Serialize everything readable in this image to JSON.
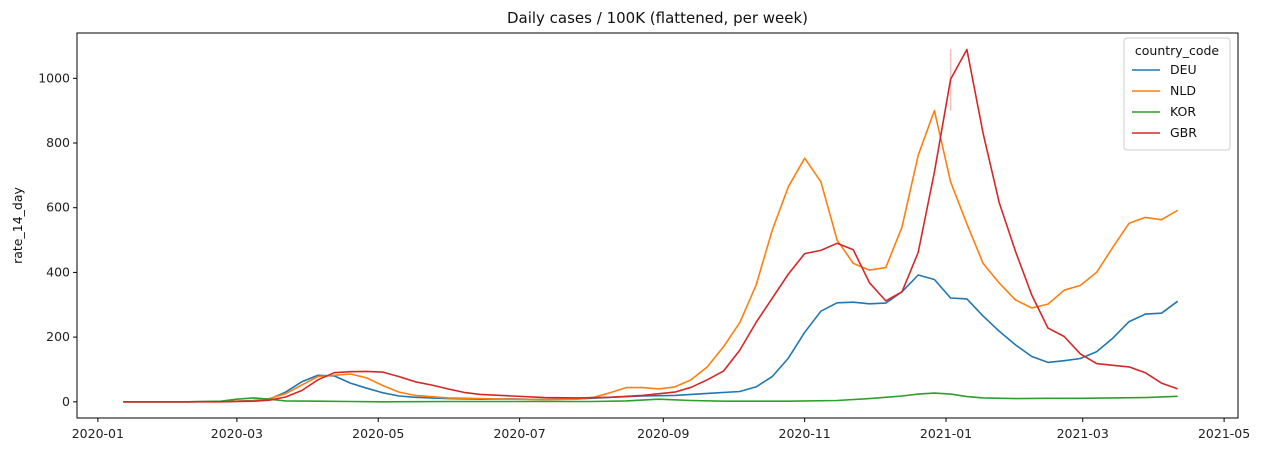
{
  "chart_data": {
    "type": "line",
    "title": "Daily cases / 100K (flattened, per week)",
    "xlabel": "",
    "ylabel": "rate_14_day",
    "xlim": [
      "2019-12-23",
      "2021-05-07"
    ],
    "ylim": [
      -50,
      1140
    ],
    "yticks": [
      0,
      200,
      400,
      600,
      800,
      1000
    ],
    "xticks": [
      {
        "date": "2020-01-01",
        "label": "2020-01"
      },
      {
        "date": "2020-03-01",
        "label": "2020-03"
      },
      {
        "date": "2020-05-01",
        "label": "2020-05"
      },
      {
        "date": "2020-07-01",
        "label": "2020-07"
      },
      {
        "date": "2020-09-01",
        "label": "2020-09"
      },
      {
        "date": "2020-11-01",
        "label": "2020-11"
      },
      {
        "date": "2021-01-01",
        "label": "2021-01"
      },
      {
        "date": "2021-03-01",
        "label": "2021-03"
      },
      {
        "date": "2021-05-01",
        "label": "2021-05"
      }
    ],
    "legend": {
      "title": "country_code",
      "placement": "top-right"
    },
    "grid": false,
    "series": [
      {
        "name": "DEU",
        "color": "#1f77b4",
        "points": [
          [
            "2020-01-12",
            0
          ],
          [
            "2020-01-26",
            0
          ],
          [
            "2020-02-09",
            0
          ],
          [
            "2020-02-23",
            1
          ],
          [
            "2020-03-01",
            2
          ],
          [
            "2020-03-08",
            4
          ],
          [
            "2020-03-15",
            8
          ],
          [
            "2020-03-22",
            30
          ],
          [
            "2020-03-29",
            62
          ],
          [
            "2020-04-05",
            82
          ],
          [
            "2020-04-12",
            80
          ],
          [
            "2020-04-19",
            58
          ],
          [
            "2020-04-26",
            42
          ],
          [
            "2020-05-03",
            28
          ],
          [
            "2020-05-10",
            18
          ],
          [
            "2020-05-17",
            14
          ],
          [
            "2020-05-31",
            10
          ],
          [
            "2020-06-14",
            8
          ],
          [
            "2020-06-28",
            9
          ],
          [
            "2020-07-12",
            7
          ],
          [
            "2020-07-26",
            9
          ],
          [
            "2020-08-09",
            14
          ],
          [
            "2020-08-23",
            18
          ],
          [
            "2020-09-06",
            20
          ],
          [
            "2020-09-20",
            26
          ],
          [
            "2020-10-04",
            32
          ],
          [
            "2020-10-11",
            46
          ],
          [
            "2020-10-18",
            78
          ],
          [
            "2020-10-25",
            135
          ],
          [
            "2020-11-01",
            215
          ],
          [
            "2020-11-08",
            280
          ],
          [
            "2020-11-15",
            306
          ],
          [
            "2020-11-22",
            308
          ],
          [
            "2020-11-29",
            303
          ],
          [
            "2020-12-06",
            305
          ],
          [
            "2020-12-13",
            340
          ],
          [
            "2020-12-20",
            392
          ],
          [
            "2020-12-27",
            378
          ],
          [
            "2021-01-03",
            321
          ],
          [
            "2021-01-10",
            318
          ],
          [
            "2021-01-17",
            265
          ],
          [
            "2021-01-24",
            218
          ],
          [
            "2021-01-31",
            176
          ],
          [
            "2021-02-07",
            140
          ],
          [
            "2021-02-14",
            122
          ],
          [
            "2021-02-21",
            127
          ],
          [
            "2021-02-28",
            134
          ],
          [
            "2021-03-07",
            155
          ],
          [
            "2021-03-14",
            197
          ],
          [
            "2021-03-21",
            248
          ],
          [
            "2021-03-28",
            271
          ],
          [
            "2021-04-04",
            274
          ],
          [
            "2021-04-11",
            311
          ]
        ]
      },
      {
        "name": "NLD",
        "color": "#ff7f0e",
        "points": [
          [
            "2020-01-12",
            0
          ],
          [
            "2020-01-26",
            0
          ],
          [
            "2020-02-09",
            0
          ],
          [
            "2020-02-23",
            1
          ],
          [
            "2020-03-01",
            2
          ],
          [
            "2020-03-08",
            3
          ],
          [
            "2020-03-15",
            10
          ],
          [
            "2020-03-22",
            25
          ],
          [
            "2020-03-29",
            52
          ],
          [
            "2020-04-05",
            78
          ],
          [
            "2020-04-12",
            82
          ],
          [
            "2020-04-19",
            86
          ],
          [
            "2020-04-26",
            74
          ],
          [
            "2020-05-03",
            50
          ],
          [
            "2020-05-10",
            30
          ],
          [
            "2020-05-17",
            20
          ],
          [
            "2020-05-31",
            12
          ],
          [
            "2020-06-14",
            10
          ],
          [
            "2020-06-28",
            8
          ],
          [
            "2020-07-12",
            7
          ],
          [
            "2020-07-26",
            8
          ],
          [
            "2020-08-02",
            14
          ],
          [
            "2020-08-09",
            28
          ],
          [
            "2020-08-16",
            44
          ],
          [
            "2020-08-23",
            44
          ],
          [
            "2020-08-30",
            40
          ],
          [
            "2020-09-06",
            46
          ],
          [
            "2020-09-13",
            68
          ],
          [
            "2020-09-20",
            108
          ],
          [
            "2020-09-27",
            170
          ],
          [
            "2020-10-04",
            245
          ],
          [
            "2020-10-11",
            360
          ],
          [
            "2020-10-18",
            530
          ],
          [
            "2020-10-25",
            665
          ],
          [
            "2020-11-01",
            753
          ],
          [
            "2020-11-08",
            680
          ],
          [
            "2020-11-15",
            500
          ],
          [
            "2020-11-22",
            428
          ],
          [
            "2020-11-29",
            407
          ],
          [
            "2020-12-06",
            415
          ],
          [
            "2020-12-13",
            540
          ],
          [
            "2020-12-20",
            762
          ],
          [
            "2020-12-27",
            900
          ],
          [
            "2021-01-03",
            680
          ],
          [
            "2021-01-10",
            550
          ],
          [
            "2021-01-17",
            428
          ],
          [
            "2021-01-24",
            367
          ],
          [
            "2021-01-31",
            315
          ],
          [
            "2021-02-07",
            290
          ],
          [
            "2021-02-14",
            302
          ],
          [
            "2021-02-21",
            345
          ],
          [
            "2021-02-28",
            360
          ],
          [
            "2021-03-07",
            400
          ],
          [
            "2021-03-14",
            478
          ],
          [
            "2021-03-21",
            552
          ],
          [
            "2021-03-28",
            570
          ],
          [
            "2021-04-04",
            563
          ],
          [
            "2021-04-11",
            592
          ]
        ]
      },
      {
        "name": "KOR",
        "color": "#2ca02c",
        "points": [
          [
            "2020-01-12",
            0
          ],
          [
            "2020-01-26",
            0
          ],
          [
            "2020-02-09",
            0
          ],
          [
            "2020-02-23",
            2
          ],
          [
            "2020-03-01",
            8
          ],
          [
            "2020-03-08",
            12
          ],
          [
            "2020-03-15",
            8
          ],
          [
            "2020-03-22",
            3
          ],
          [
            "2020-04-05",
            2
          ],
          [
            "2020-04-19",
            1
          ],
          [
            "2020-05-03",
            0
          ],
          [
            "2020-06-01",
            1
          ],
          [
            "2020-07-01",
            1
          ],
          [
            "2020-08-01",
            1
          ],
          [
            "2020-08-16",
            3
          ],
          [
            "2020-08-30",
            8
          ],
          [
            "2020-09-13",
            4
          ],
          [
            "2020-09-27",
            2
          ],
          [
            "2020-10-25",
            2
          ],
          [
            "2020-11-15",
            4
          ],
          [
            "2020-11-29",
            10
          ],
          [
            "2020-12-13",
            18
          ],
          [
            "2020-12-20",
            24
          ],
          [
            "2020-12-27",
            27
          ],
          [
            "2021-01-03",
            24
          ],
          [
            "2021-01-10",
            16
          ],
          [
            "2021-01-17",
            12
          ],
          [
            "2021-01-31",
            10
          ],
          [
            "2021-02-14",
            11
          ],
          [
            "2021-02-28",
            11
          ],
          [
            "2021-03-14",
            12
          ],
          [
            "2021-03-28",
            13
          ],
          [
            "2021-04-11",
            17
          ]
        ]
      },
      {
        "name": "GBR",
        "color": "#d62728",
        "points": [
          [
            "2020-01-12",
            0
          ],
          [
            "2020-01-26",
            0
          ],
          [
            "2020-02-09",
            0
          ],
          [
            "2020-02-23",
            0
          ],
          [
            "2020-03-08",
            2
          ],
          [
            "2020-03-15",
            5
          ],
          [
            "2020-03-22",
            15
          ],
          [
            "2020-03-29",
            35
          ],
          [
            "2020-04-05",
            68
          ],
          [
            "2020-04-12",
            90
          ],
          [
            "2020-04-19",
            93
          ],
          [
            "2020-04-26",
            94
          ],
          [
            "2020-05-03",
            92
          ],
          [
            "2020-05-10",
            78
          ],
          [
            "2020-05-17",
            62
          ],
          [
            "2020-05-24",
            52
          ],
          [
            "2020-05-31",
            40
          ],
          [
            "2020-06-07",
            29
          ],
          [
            "2020-06-14",
            23
          ],
          [
            "2020-06-28",
            18
          ],
          [
            "2020-07-12",
            13
          ],
          [
            "2020-07-26",
            12
          ],
          [
            "2020-08-09",
            14
          ],
          [
            "2020-08-23",
            20
          ],
          [
            "2020-09-06",
            30
          ],
          [
            "2020-09-13",
            45
          ],
          [
            "2020-09-20",
            68
          ],
          [
            "2020-09-27",
            95
          ],
          [
            "2020-10-04",
            160
          ],
          [
            "2020-10-11",
            245
          ],
          [
            "2020-10-18",
            320
          ],
          [
            "2020-10-25",
            395
          ],
          [
            "2020-11-01",
            458
          ],
          [
            "2020-11-08",
            468
          ],
          [
            "2020-11-15",
            490
          ],
          [
            "2020-11-22",
            470
          ],
          [
            "2020-11-29",
            368
          ],
          [
            "2020-12-06",
            312
          ],
          [
            "2020-12-13",
            340
          ],
          [
            "2020-12-20",
            462
          ],
          [
            "2020-12-27",
            710
          ],
          [
            "2021-01-03",
            997
          ],
          [
            "2021-01-10",
            1089
          ],
          [
            "2021-01-17",
            830
          ],
          [
            "2021-01-24",
            615
          ],
          [
            "2021-01-31",
            465
          ],
          [
            "2021-02-07",
            330
          ],
          [
            "2021-02-14",
            228
          ],
          [
            "2021-02-21",
            202
          ],
          [
            "2021-02-28",
            148
          ],
          [
            "2021-03-07",
            118
          ],
          [
            "2021-03-14",
            113
          ],
          [
            "2021-03-21",
            108
          ],
          [
            "2021-03-28",
            90
          ],
          [
            "2021-04-04",
            58
          ],
          [
            "2021-04-11",
            40
          ]
        ]
      }
    ],
    "annotations": [
      {
        "type": "error-bar",
        "series": "GBR",
        "date": "2021-01-03",
        "low": 900,
        "high": 1090
      }
    ]
  }
}
